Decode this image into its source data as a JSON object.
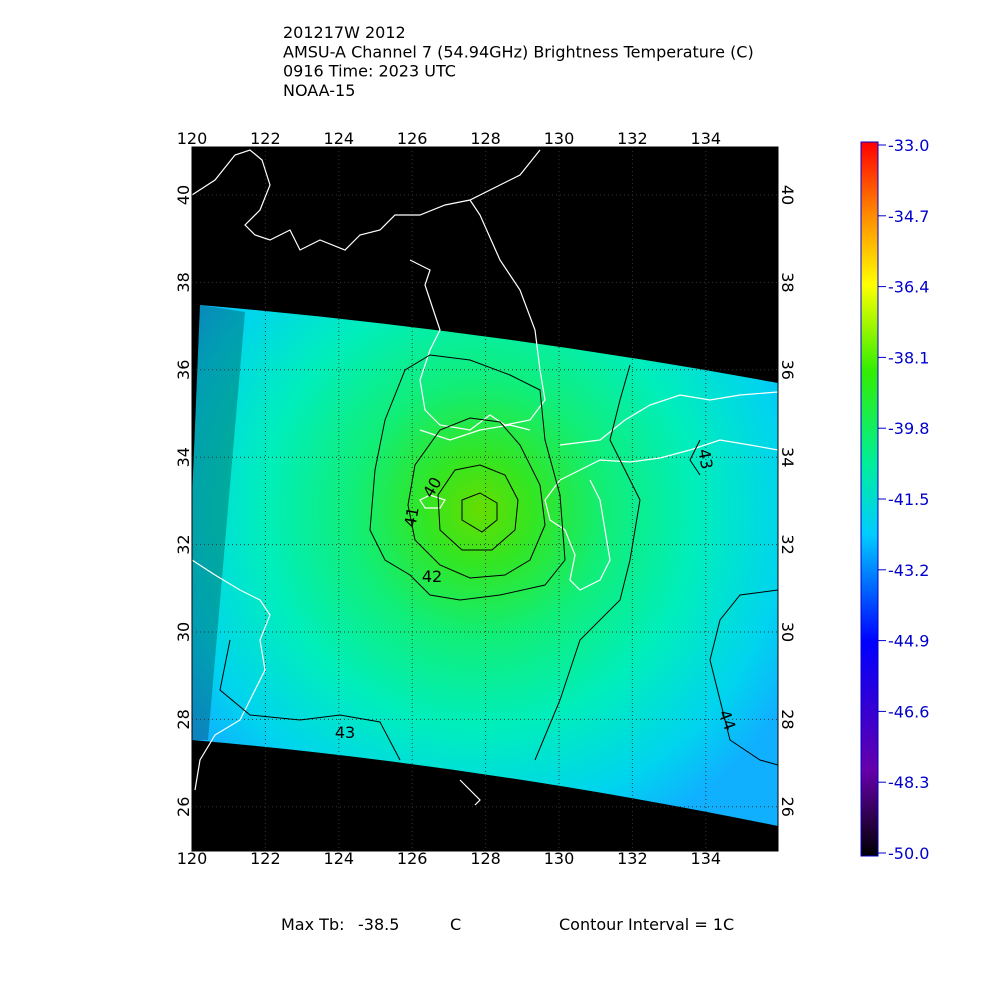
{
  "header": {
    "lines": [
      "201217W 2012",
      "AMSU-A Channel 7 (54.94GHz) Brightness Temperature (C)",
      "0916 Time: 2023 UTC",
      "NOAA-15"
    ]
  },
  "map": {
    "lon_ticks": [
      120,
      122,
      124,
      126,
      128,
      130,
      132,
      134
    ],
    "lat_ticks": [
      26,
      28,
      30,
      32,
      34,
      36,
      38,
      40
    ],
    "contour_labels": [
      "40",
      "41",
      "42",
      "43",
      "44",
      "43"
    ]
  },
  "colorbar": {
    "range": [
      -50,
      -33
    ],
    "ticks": [
      {
        "value": -33,
        "label": "-33.0"
      },
      {
        "value": -34.7,
        "label": "-34.7"
      },
      {
        "value": -36.4,
        "label": "-36.4"
      },
      {
        "value": -38.1,
        "label": "-38.1"
      },
      {
        "value": -39.8,
        "label": "-39.8"
      },
      {
        "value": -41.5,
        "label": "-41.5"
      },
      {
        "value": -43.2,
        "label": "-43.2"
      },
      {
        "value": -44.9,
        "label": "-44.9"
      },
      {
        "value": -46.6,
        "label": "-46.6"
      },
      {
        "value": -48.3,
        "label": "-48.3"
      },
      {
        "value": -50,
        "label": "-50.0"
      }
    ]
  },
  "footer": {
    "max_label": "Max Tb:",
    "max_value": "-38.5",
    "max_unit": "C",
    "interval": "Contour Interval = 1C"
  }
}
